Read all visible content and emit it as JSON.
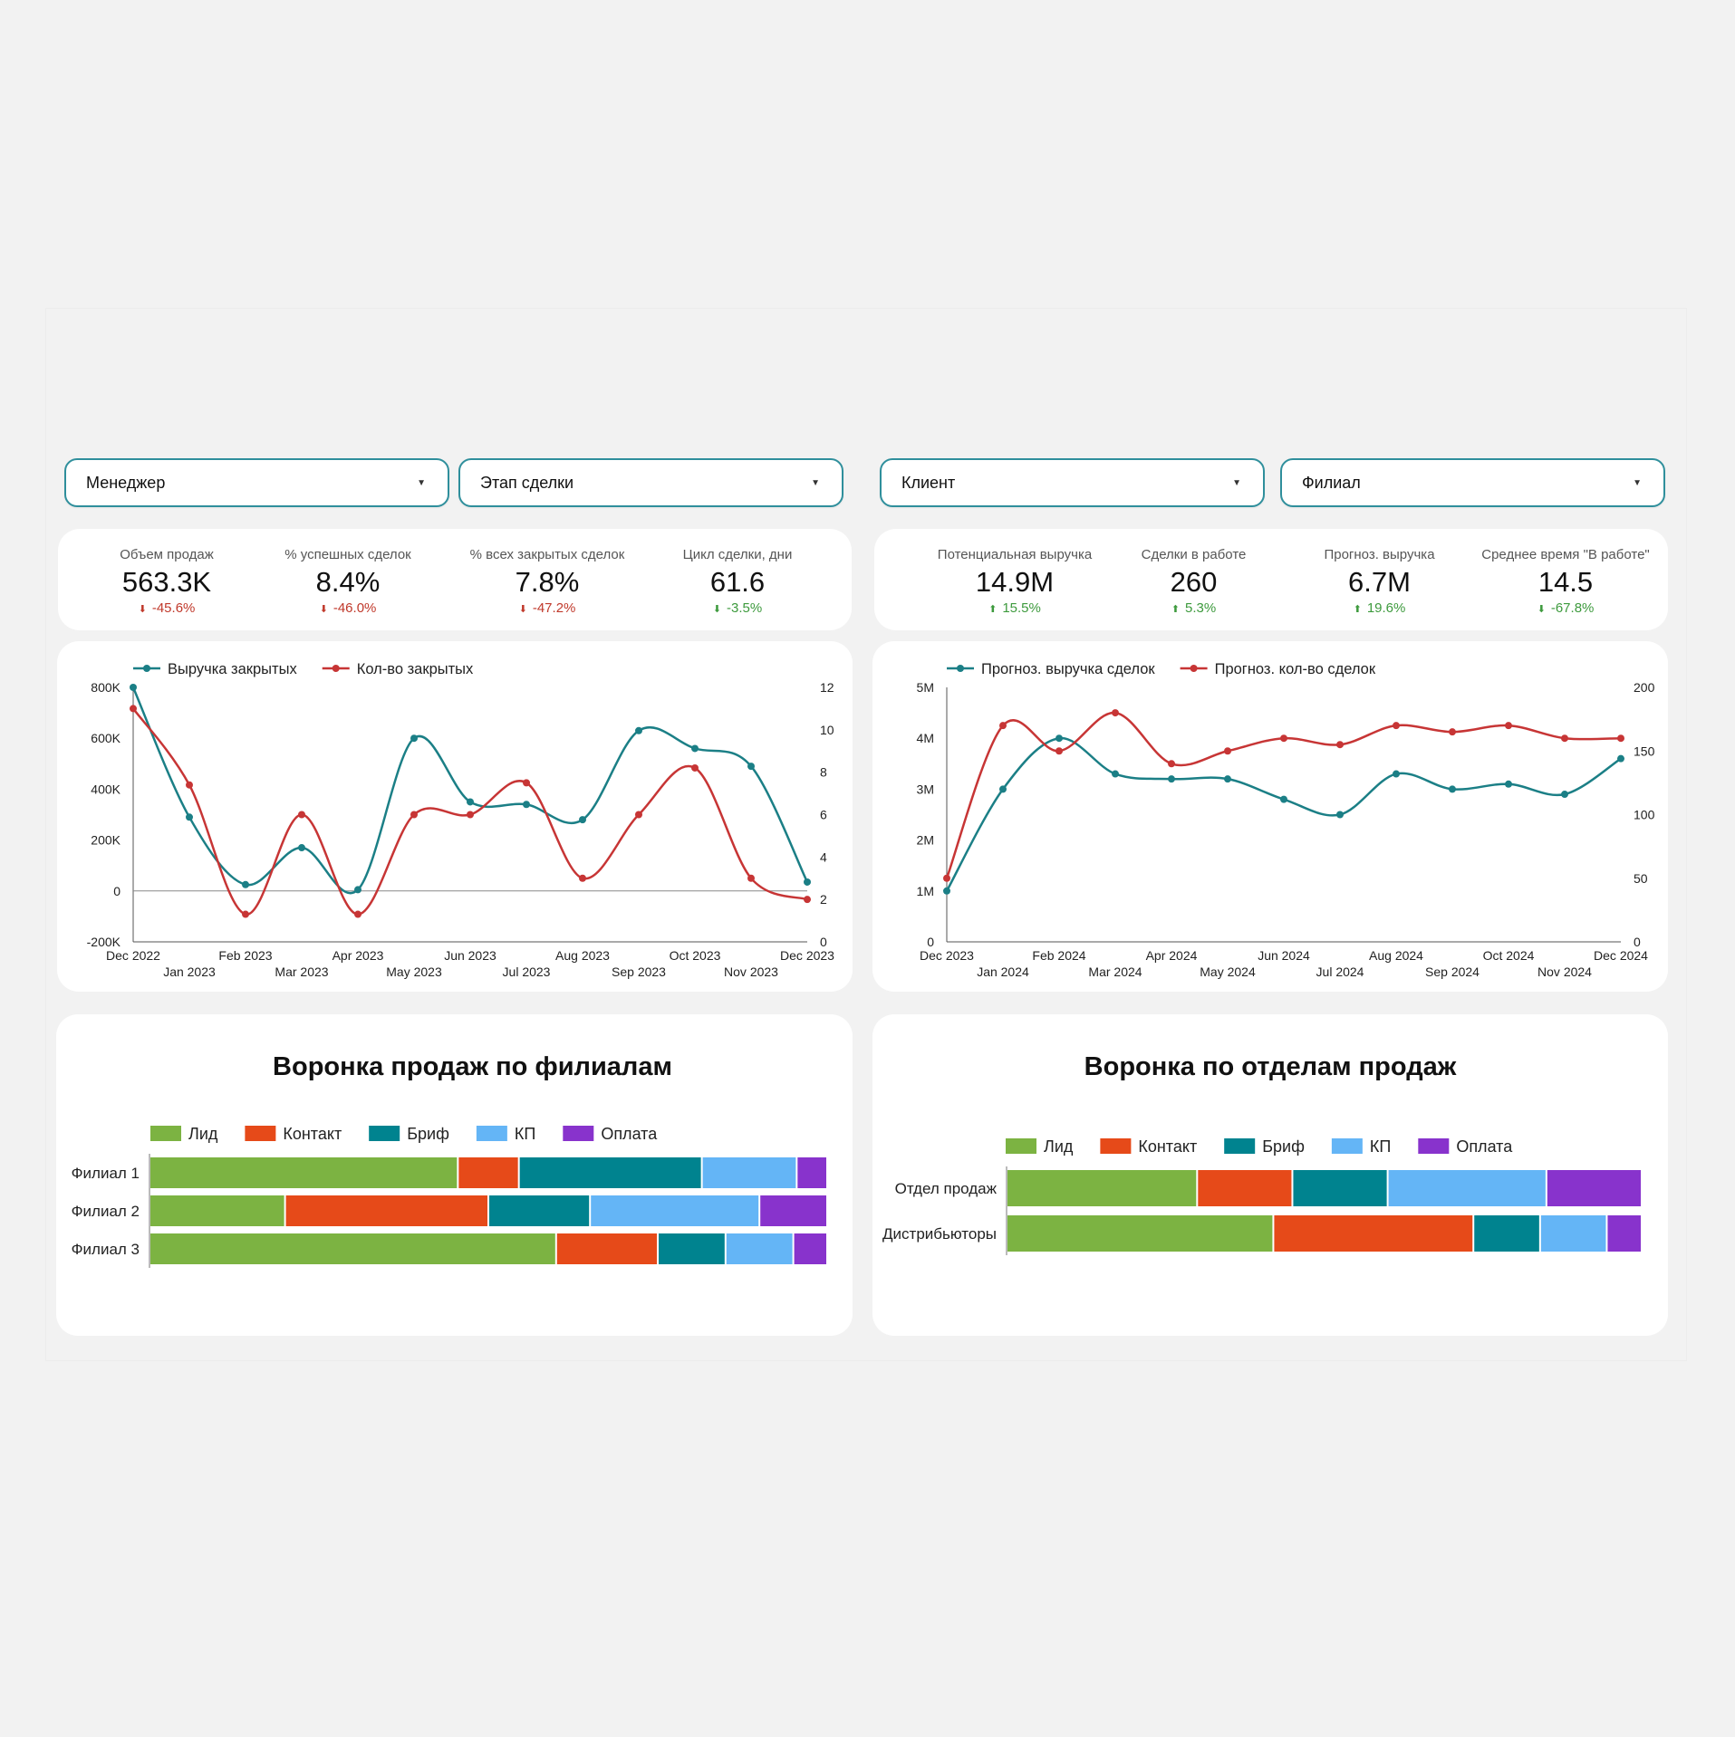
{
  "filters": [
    {
      "label": "Менеджер"
    },
    {
      "label": "Этап сделки"
    },
    {
      "label": "Клиент"
    },
    {
      "label": "Филиал"
    }
  ],
  "kpis_left": [
    {
      "label": "Объем продаж",
      "value": "563.3K",
      "delta": "-45.6%",
      "dir": "down"
    },
    {
      "label": "% успешных сделок",
      "value": "8.4%",
      "delta": "-46.0%",
      "dir": "down"
    },
    {
      "label": "% всех закрытых сделок",
      "value": "7.8%",
      "delta": "-47.2%",
      "dir": "down"
    },
    {
      "label": "Цикл сделки, дни",
      "value": "61.6",
      "delta": "-3.5%",
      "dir": "down-good"
    }
  ],
  "kpis_right": [
    {
      "label": "Потенциальная выручка",
      "value": "14.9M",
      "delta": "15.5%",
      "dir": "up"
    },
    {
      "label": "Сделки в работе",
      "value": "260",
      "delta": "5.3%",
      "dir": "up"
    },
    {
      "label": "Прогноз. выручка",
      "value": "6.7M",
      "delta": "19.6%",
      "dir": "up"
    },
    {
      "label": "Среднее время \"В работе\"",
      "value": "14.5",
      "delta": "-67.8%",
      "dir": "down-good"
    }
  ],
  "colors": {
    "teal": "#1b7f86",
    "red": "#c73535",
    "lid": "#7cb342",
    "kontakt": "#e64a19",
    "brif": "#00838f",
    "kp": "#64b5f6",
    "oplata": "#8833cc",
    "up": "#3d9a3d",
    "down": "#c0392b"
  },
  "chart_data": [
    {
      "type": "line",
      "x": [
        "Dec 2022",
        "Jan 2023",
        "Feb 2023",
        "Mar 2023",
        "Apr 2023",
        "May 2023",
        "Jun 2023",
        "Jul 2023",
        "Aug 2023",
        "Sep 2023",
        "Oct 2023",
        "Nov 2023",
        "Dec 2023"
      ],
      "series": [
        {
          "name": "Выручка закрытых",
          "axis": "left",
          "color": "#1b7f86",
          "values": [
            800000,
            290000,
            25000,
            170000,
            5000,
            600000,
            350000,
            340000,
            280000,
            630000,
            560000,
            490000,
            35000
          ]
        },
        {
          "name": "Кол-во закрытых",
          "axis": "right",
          "color": "#c73535",
          "values": [
            11,
            7.4,
            1.3,
            6,
            1.3,
            6,
            6,
            7.5,
            3,
            6,
            8.2,
            3,
            2
          ]
        }
      ],
      "ylim_left": [
        -200000,
        800000
      ],
      "yticks_left": [
        "800K",
        "600K",
        "400K",
        "200K",
        "0",
        "-200K"
      ],
      "ylim_right": [
        0,
        12
      ],
      "yticks_right": [
        "12",
        "10",
        "8",
        "6",
        "4",
        "2",
        "0"
      ],
      "legend": "top-left"
    },
    {
      "type": "line",
      "x": [
        "Dec 2023",
        "Jan 2024",
        "Feb 2024",
        "Mar 2024",
        "Apr 2024",
        "May 2024",
        "Jun 2024",
        "Jul 2024",
        "Aug 2024",
        "Sep 2024",
        "Oct 2024",
        "Nov 2024",
        "Dec 2024"
      ],
      "series": [
        {
          "name": "Прогноз. выручка сделок",
          "axis": "left",
          "color": "#1b7f86",
          "values": [
            1000000,
            3000000,
            4000000,
            3300000,
            3200000,
            3200000,
            2800000,
            2500000,
            3300000,
            3000000,
            3100000,
            2900000,
            3600000
          ]
        },
        {
          "name": "Прогноз. кол-во сделок",
          "axis": "right",
          "color": "#c73535",
          "values": [
            50,
            170,
            150,
            180,
            140,
            150,
            160,
            155,
            170,
            165,
            170,
            160,
            160
          ]
        }
      ],
      "ylim_left": [
        0,
        5000000
      ],
      "yticks_left": [
        "5M",
        "4M",
        "3M",
        "2M",
        "1M",
        "0"
      ],
      "ylim_right": [
        0,
        200
      ],
      "yticks_right": [
        "200",
        "150",
        "100",
        "50",
        "0"
      ],
      "legend": "top-left"
    },
    {
      "type": "bar",
      "orientation": "horizontal-stacked-100",
      "title": "Воронка продаж по филиалам",
      "categories": [
        "Филиал 1",
        "Филиал 2",
        "Филиал 3"
      ],
      "series": [
        {
          "name": "Лид",
          "color": "#7cb342",
          "values": [
            45.5,
            20,
            60
          ]
        },
        {
          "name": "Контакт",
          "color": "#e64a19",
          "values": [
            9,
            30,
            15
          ]
        },
        {
          "name": "Бриф",
          "color": "#00838f",
          "values": [
            27,
            15,
            10
          ]
        },
        {
          "name": "КП",
          "color": "#64b5f6",
          "values": [
            14,
            25,
            10
          ]
        },
        {
          "name": "Оплата",
          "color": "#8833cc",
          "values": [
            4.5,
            10,
            5
          ]
        }
      ]
    },
    {
      "type": "bar",
      "orientation": "horizontal-stacked-100",
      "title": "Воронка по отделам продаж",
      "categories": [
        "Отдел продаж",
        "Дистрибьюторы"
      ],
      "series": [
        {
          "name": "Лид",
          "color": "#7cb342",
          "values": [
            30,
            42
          ]
        },
        {
          "name": "Контакт",
          "color": "#e64a19",
          "values": [
            15,
            31.5
          ]
        },
        {
          "name": "Бриф",
          "color": "#00838f",
          "values": [
            15,
            10.5
          ]
        },
        {
          "name": "КП",
          "color": "#64b5f6",
          "values": [
            25,
            10.5
          ]
        },
        {
          "name": "Оплата",
          "color": "#8833cc",
          "values": [
            15,
            5.5
          ]
        }
      ]
    }
  ]
}
